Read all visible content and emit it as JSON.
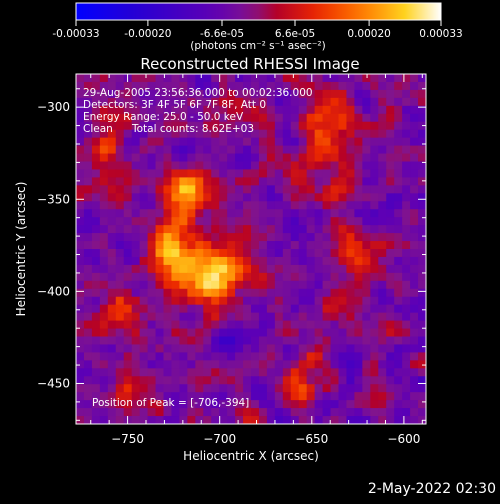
{
  "colorbar": {
    "tick_labels": [
      "-0.00033",
      "-0.00020",
      "-6.6e-05",
      "6.6e-05",
      "0.00020",
      "0.00033"
    ],
    "tick_values": [
      -0.00033,
      -0.0002,
      -6.6e-05,
      6.6e-05,
      0.0002,
      0.00033
    ],
    "range": [
      -0.00033,
      0.00033
    ],
    "unit_label": "(photons cm⁻² s⁻¹ asec⁻²)"
  },
  "chart_data": {
    "type": "heatmap",
    "title": "Reconstructed RHESSI Image",
    "xlabel": "Heliocentric X (arcsec)",
    "ylabel": "Heliocentric Y (arcsec)",
    "xlim": [
      -778,
      -588
    ],
    "ylim": [
      -472,
      -282
    ],
    "xticks": [
      -750,
      -700,
      -650,
      -600
    ],
    "yticks": [
      -450,
      -400,
      -350,
      -300
    ],
    "grid": false,
    "peak": [
      -706,
      -394
    ],
    "sources": [
      {
        "x": -705,
        "y": -391,
        "amp": 0.00033,
        "sx": 12,
        "sy": 10
      },
      {
        "x": -717,
        "y": -347,
        "amp": 0.00025,
        "sx": 10,
        "sy": 9
      },
      {
        "x": -727,
        "y": -377,
        "amp": 0.00022,
        "sx": 9,
        "sy": 14
      },
      {
        "x": -755,
        "y": -410,
        "amp": 0.00018,
        "sx": 9,
        "sy": 9
      },
      {
        "x": -760,
        "y": -323,
        "amp": 0.00012,
        "sx": 10,
        "sy": 14
      },
      {
        "x": -642,
        "y": -315,
        "amp": 0.00015,
        "sx": 10,
        "sy": 18
      },
      {
        "x": -625,
        "y": -382,
        "amp": 0.00014,
        "sx": 9,
        "sy": 14
      },
      {
        "x": -658,
        "y": -448,
        "amp": 0.00013,
        "sx": 9,
        "sy": 9
      },
      {
        "x": -752,
        "y": -453,
        "amp": 0.00012,
        "sx": 8,
        "sy": 7
      },
      {
        "x": -693,
        "y": -300,
        "amp": 0.0001,
        "sx": 9,
        "sy": 8
      }
    ],
    "annotations": {
      "time": "29-Aug-2005 23:56:36.000 to 00:02:36.000",
      "detectors": "Detectors: 3F 4F 5F 6F 7F 8F, Att 0",
      "energy": "Energy Range: 25.0 - 50.0 keV",
      "clean_label": "Clean",
      "counts": "Total counts: 8.62E+03",
      "peak_label": "Position of Peak = [-706,-394]"
    }
  },
  "footer": {
    "timestamp": "2-May-2022 02:30"
  }
}
